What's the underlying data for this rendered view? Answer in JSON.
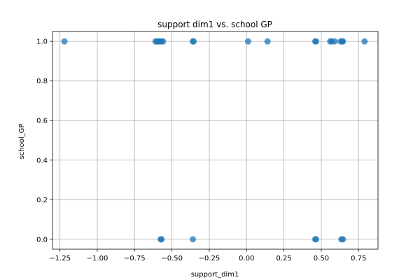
{
  "chart_data": {
    "type": "scatter",
    "title": "support dim1 vs. school GP",
    "xlabel": "support_dim1",
    "ylabel": "school_GP",
    "xlim": [
      -1.3,
      0.88
    ],
    "ylim": [
      -0.05,
      1.05
    ],
    "grid": true,
    "x_ticks": [
      -1.25,
      -1.0,
      -0.75,
      -0.5,
      -0.25,
      0.0,
      0.25,
      0.5,
      0.75
    ],
    "x_tick_labels": [
      "−1.25",
      "−1.00",
      "−0.75",
      "−0.50",
      "−0.25",
      "0.00",
      "0.25",
      "0.50",
      "0.75"
    ],
    "y_ticks": [
      0.0,
      0.2,
      0.4,
      0.6,
      0.8,
      1.0
    ],
    "y_tick_labels": [
      "0.0",
      "0.2",
      "0.4",
      "0.6",
      "0.8",
      "1.0"
    ],
    "marker_color": "#1f77b4",
    "marker_alpha": 0.75,
    "points": [
      {
        "x": -1.22,
        "y": 1.0
      },
      {
        "x": -0.61,
        "y": 1.0
      },
      {
        "x": -0.6,
        "y": 1.0
      },
      {
        "x": -0.59,
        "y": 1.0
      },
      {
        "x": -0.58,
        "y": 1.0
      },
      {
        "x": -0.57,
        "y": 1.0
      },
      {
        "x": -0.56,
        "y": 1.0
      },
      {
        "x": -0.36,
        "y": 1.0
      },
      {
        "x": -0.355,
        "y": 1.0
      },
      {
        "x": 0.01,
        "y": 1.0
      },
      {
        "x": 0.14,
        "y": 1.0
      },
      {
        "x": 0.46,
        "y": 1.0
      },
      {
        "x": 0.465,
        "y": 1.0
      },
      {
        "x": 0.56,
        "y": 1.0
      },
      {
        "x": 0.57,
        "y": 1.0
      },
      {
        "x": 0.59,
        "y": 1.0
      },
      {
        "x": 0.63,
        "y": 1.0
      },
      {
        "x": 0.64,
        "y": 1.0
      },
      {
        "x": 0.645,
        "y": 1.0
      },
      {
        "x": 0.79,
        "y": 1.0
      },
      {
        "x": -0.575,
        "y": 0.0
      },
      {
        "x": -0.57,
        "y": 0.0
      },
      {
        "x": -0.36,
        "y": 0.0
      },
      {
        "x": 0.46,
        "y": 0.0
      },
      {
        "x": 0.465,
        "y": 0.0
      },
      {
        "x": 0.635,
        "y": 0.0
      },
      {
        "x": 0.645,
        "y": 0.0
      }
    ]
  }
}
